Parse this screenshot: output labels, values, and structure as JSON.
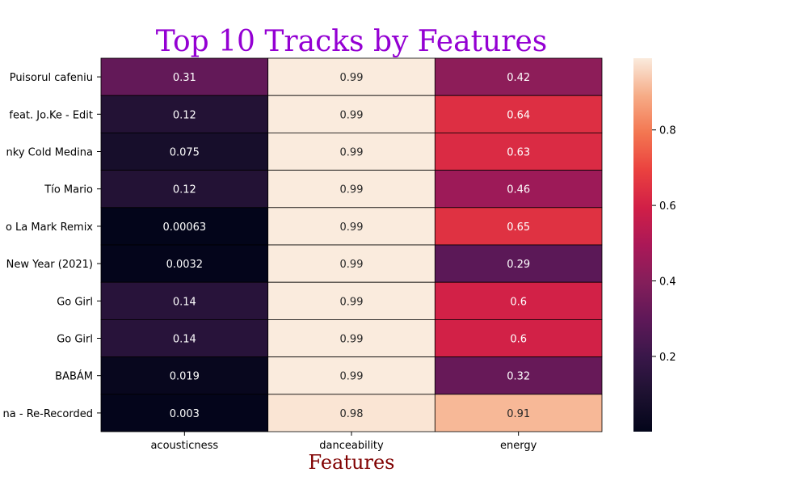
{
  "chart_data": {
    "type": "heatmap",
    "title": "Top 10 Tracks by Features",
    "xlabel": "Features",
    "ylabel": "",
    "columns": [
      "acousticness",
      "danceability",
      "energy"
    ],
    "rows": [
      "Puisorul cafeniu",
      "feat. Jo.Ke - Edit",
      "nky Cold Medina",
      "Tío Mario",
      "o La Mark Remix",
      "New Year (2021)",
      "Go Girl",
      "Go Girl",
      "BABÁM",
      "na - Re-Recorded"
    ],
    "values": [
      [
        0.31,
        0.99,
        0.42
      ],
      [
        0.12,
        0.99,
        0.64
      ],
      [
        0.075,
        0.99,
        0.63
      ],
      [
        0.12,
        0.99,
        0.46
      ],
      [
        0.00063,
        0.99,
        0.65
      ],
      [
        0.0032,
        0.99,
        0.29
      ],
      [
        0.14,
        0.99,
        0.6
      ],
      [
        0.14,
        0.99,
        0.6
      ],
      [
        0.019,
        0.99,
        0.32
      ],
      [
        0.003,
        0.98,
        0.91
      ]
    ],
    "value_labels": [
      [
        "0.31",
        "0.99",
        "0.42"
      ],
      [
        "0.12",
        "0.99",
        "0.64"
      ],
      [
        "0.075",
        "0.99",
        "0.63"
      ],
      [
        "0.12",
        "0.99",
        "0.46"
      ],
      [
        "0.00063",
        "0.99",
        "0.65"
      ],
      [
        "0.0032",
        "0.99",
        "0.29"
      ],
      [
        "0.14",
        "0.99",
        "0.6"
      ],
      [
        "0.14",
        "0.99",
        "0.6"
      ],
      [
        "0.019",
        "0.99",
        "0.32"
      ],
      [
        "0.003",
        "0.98",
        "0.91"
      ]
    ],
    "colorbar": {
      "colormap": "rocket",
      "range": [
        0.00063,
        0.99
      ],
      "ticks": [
        0.2,
        0.4,
        0.6,
        0.8
      ],
      "tick_labels": [
        "0.2",
        "0.4",
        "0.6",
        "0.8"
      ]
    },
    "cell_borders": true,
    "grid": false,
    "legend": "colorbar-right"
  }
}
